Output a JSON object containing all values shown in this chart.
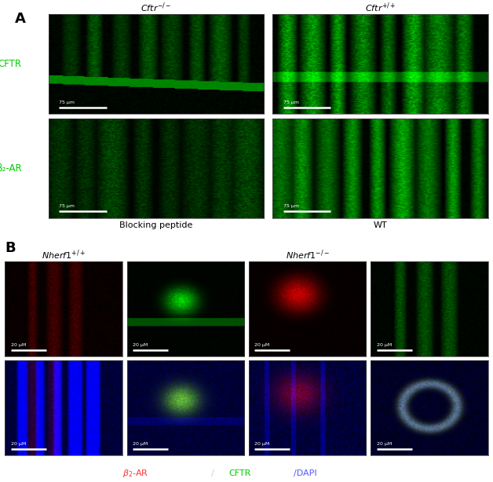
{
  "fig_width": 6.28,
  "fig_height": 6.14,
  "background_color": "#ffffff",
  "panel_A_label": "A",
  "panel_B_label": "B",
  "panel_A_col_labels": [
    "Cftr-/-",
    "Cftr+/+"
  ],
  "panel_A_row_labels": [
    "CFTR",
    "β₂-AR"
  ],
  "panel_A_row_label_color": "#00cc00",
  "panel_A_bottom_labels": [
    "Blocking peptide",
    "WT"
  ],
  "panel_A_scale_bar": "75 µm",
  "panel_B_scale_bar": "20 µM",
  "legend_parts": [
    {
      "text": "$\\beta_2$-AR",
      "color": "#ff3333"
    },
    {
      "text": "/CFTR",
      "color": "#00cc00"
    },
    {
      "text": "/DAPI",
      "color": "#5555ff"
    }
  ]
}
